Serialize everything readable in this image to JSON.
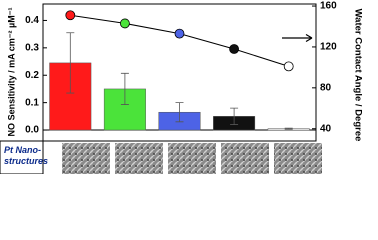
{
  "chart_data": {
    "type": "bar_line",
    "y_label": "NO Sensitivity / mA cm⁻² µM⁻¹",
    "y2_label": "Water Contact Angle / Degree",
    "annotation": "Pt Nano-\nstructures",
    "categories": [
      null,
      null,
      null,
      null,
      null
    ],
    "ylim": [
      -0.04,
      0.46
    ],
    "yticks": [
      {
        "value": 0,
        "label": "0.0"
      },
      0.1,
      0.2,
      0.3,
      0.4
    ],
    "y2lim": [
      28,
      162
    ],
    "y2ticks": [
      40,
      80,
      120,
      160
    ],
    "series": [
      {
        "type": "bar",
        "colors": [
          "#ff1a1a",
          "#4be33a",
          "#4d63e6",
          "#111111",
          "#ffffff"
        ],
        "values": [
          0.245,
          0.15,
          0.065,
          0.05,
          0.005
        ],
        "errors": [
          0.11,
          0.057,
          0.035,
          0.03,
          0.002
        ]
      },
      {
        "type": "line",
        "axis": "y2",
        "color": "#000000",
        "marker_colors": [
          "#ff1a1a",
          "#4be33a",
          "#4d63e6",
          "#111111",
          "#ffffff"
        ],
        "values": [
          151,
          143,
          133,
          118,
          101
        ]
      }
    ]
  }
}
